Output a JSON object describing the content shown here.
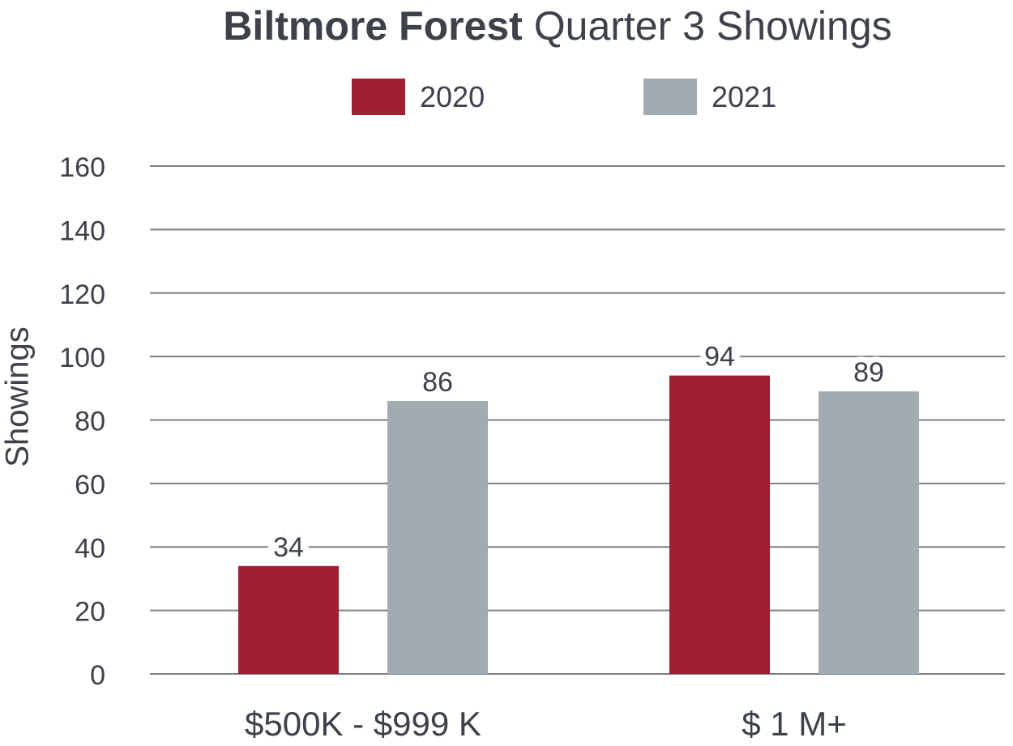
{
  "chart_data": {
    "type": "bar",
    "title_bold": "Biltmore Forest",
    "title_rest": "Quarter 3 Showings",
    "ylabel": "Showings",
    "xlabel": "",
    "categories": [
      "$500K - $999 K",
      "$ 1 M+"
    ],
    "series": [
      {
        "name": "2020",
        "values": [
          34,
          94
        ],
        "color": "#9f2032"
      },
      {
        "name": "2021",
        "values": [
          86,
          89
        ],
        "color": "#a2abb0"
      }
    ],
    "ylim": [
      0,
      160
    ],
    "yticks": [
      0,
      20,
      40,
      60,
      80,
      100,
      120,
      140,
      160
    ],
    "grid": true,
    "legend_position": "top"
  },
  "colors": {
    "text": "#3d4149",
    "grid": "#7a7f86"
  }
}
